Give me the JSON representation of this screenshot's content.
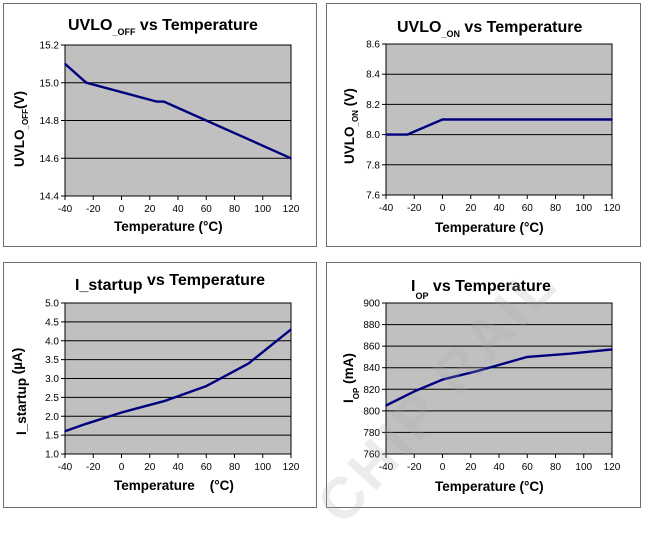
{
  "charts": [
    {
      "title": {
        "main": "UVLO",
        "sub": "_OFF",
        "rest": " vs Temperature"
      },
      "ylabel": {
        "main": "UVLO",
        "sub": "_OFF",
        "rest": "(V)"
      },
      "xlabel": "Temperature (°C)"
    },
    {
      "title": {
        "main": "UVLO",
        "sub": "_ON",
        "rest": " vs Temperature"
      },
      "ylabel": {
        "main": "UVLO",
        "sub": "_ON",
        "rest": " (V)"
      },
      "xlabel": "Temperature (°C)"
    },
    {
      "title": {
        "main": "I_startup",
        "sub": "",
        "rest": " vs Temperature"
      },
      "ylabel": {
        "main": "I_startup",
        "sub": "",
        "rest": " (µA)"
      },
      "xlabel": "Temperature    (°C)"
    },
    {
      "title": {
        "main": "I",
        "sub": "OP",
        "rest": " vs Temperature"
      },
      "ylabel": {
        "main": "I",
        "sub": "OP",
        "rest": " (mA)"
      },
      "xlabel": "Temperature (°C)"
    }
  ],
  "chart_data": [
    {
      "type": "line",
      "title": "UVLO_OFF vs Temperature",
      "xlabel": "Temperature (°C)",
      "ylabel": "UVLO_OFF(V)",
      "xlim": [
        -40,
        120
      ],
      "ylim": [
        14.4,
        15.2
      ],
      "xticks": [
        "-40",
        "-20",
        "0",
        "20",
        "40",
        "60",
        "80",
        "100",
        "120"
      ],
      "yticks": [
        "14.4",
        "14.6",
        "14.8",
        "15.0",
        "15.2"
      ],
      "x": [
        -40,
        -25,
        25,
        30,
        120
      ],
      "y": [
        15.1,
        15.0,
        14.9,
        14.9,
        14.6
      ],
      "grid": "horizontal",
      "plot_bg": "#c0c0c0",
      "line_color": "#00007f"
    },
    {
      "type": "line",
      "title": "UVLO_ON vs Temperature",
      "xlabel": "Temperature (°C)",
      "ylabel": "UVLO_ON (V)",
      "xlim": [
        -40,
        120
      ],
      "ylim": [
        7.6,
        8.6
      ],
      "xticks": [
        "-40",
        "-20",
        "0",
        "20",
        "40",
        "60",
        "80",
        "100",
        "120"
      ],
      "yticks": [
        "7.6",
        "7.8",
        "8.0",
        "8.2",
        "8.4",
        "8.6"
      ],
      "x": [
        -40,
        -25,
        0,
        120
      ],
      "y": [
        8.0,
        8.0,
        8.1,
        8.1
      ],
      "grid": "horizontal",
      "plot_bg": "#c0c0c0",
      "line_color": "#00007f"
    },
    {
      "type": "line",
      "title": "I_startup vs Temperature",
      "xlabel": "Temperature (°C)",
      "ylabel": "I_startup (µA)",
      "xlim": [
        -40,
        120
      ],
      "ylim": [
        1.0,
        5.0
      ],
      "xticks": [
        "-40",
        "-20",
        "0",
        "20",
        "40",
        "60",
        "80",
        "100",
        "120"
      ],
      "yticks": [
        "1.0",
        "1.5",
        "2.0",
        "2.5",
        "3.0",
        "3.5",
        "4.0",
        "4.5",
        "5.0"
      ],
      "x": [
        -40,
        -25,
        0,
        30,
        60,
        90,
        120
      ],
      "y": [
        1.6,
        1.8,
        2.1,
        2.4,
        2.8,
        3.4,
        4.3
      ],
      "grid": "horizontal",
      "plot_bg": "#c0c0c0",
      "line_color": "#00007f"
    },
    {
      "type": "line",
      "title": "IOP vs Temperature",
      "xlabel": "Temperature (°C)",
      "ylabel": "IOP (mA)",
      "xlim": [
        -40,
        120
      ],
      "ylim": [
        760,
        900
      ],
      "xticks": [
        "-40",
        "-20",
        "0",
        "20",
        "40",
        "60",
        "80",
        "100",
        "120"
      ],
      "yticks": [
        "760",
        "780",
        "800",
        "820",
        "840",
        "860",
        "880",
        "900"
      ],
      "x": [
        -40,
        -20,
        0,
        25,
        60,
        90,
        120
      ],
      "y": [
        805,
        818,
        829,
        837,
        850,
        853,
        857
      ],
      "grid": "horizontal",
      "plot_bg": "#c0c0c0",
      "line_color": "#00007f"
    }
  ],
  "watermark": "CHIP RAIL"
}
